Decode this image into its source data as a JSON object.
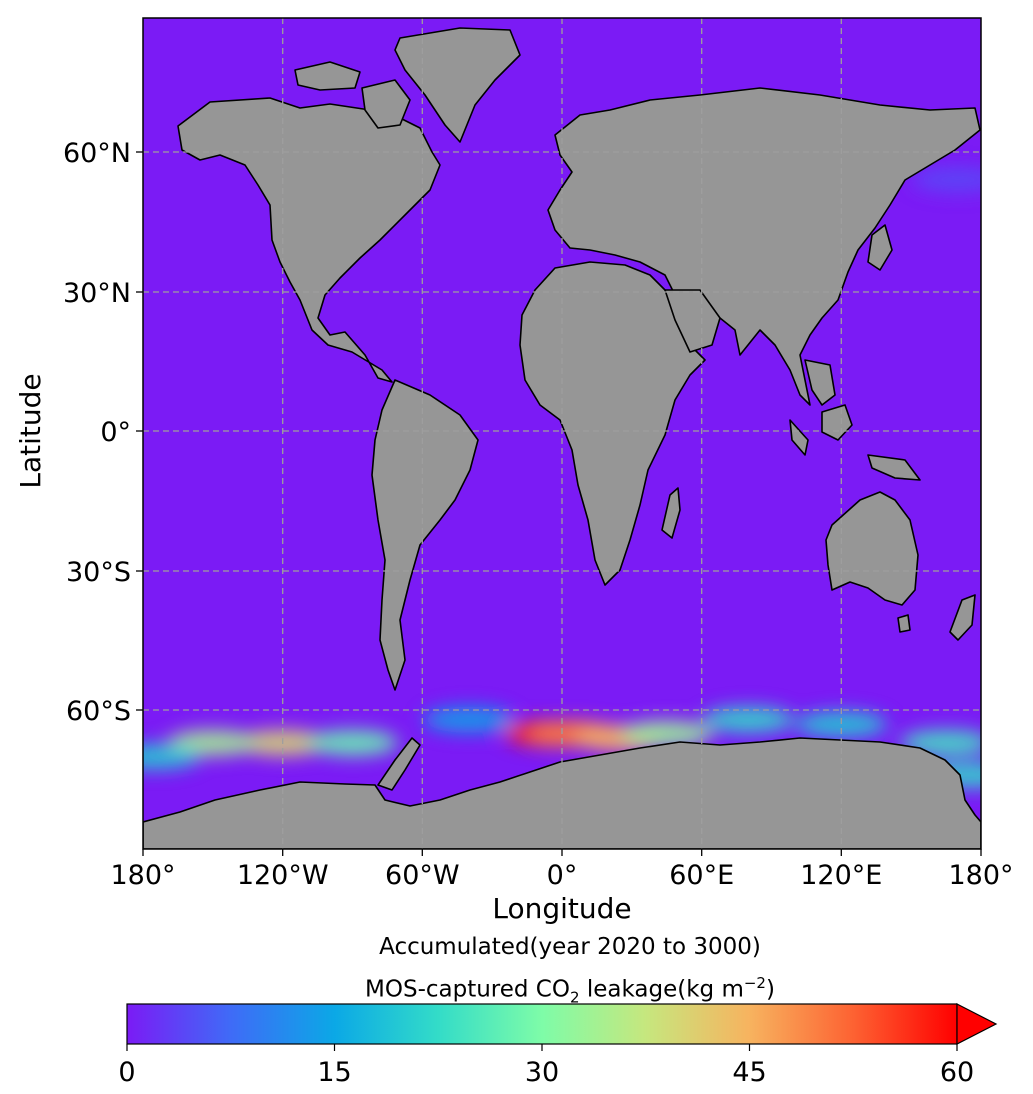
{
  "map": {
    "projection": "PlateCarree",
    "extent": {
      "lon": [
        -180,
        180
      ],
      "lat": [
        -90,
        90
      ]
    },
    "ocean_color": "#7B1BF5",
    "land_color": "#969696",
    "coast_color": "#000000",
    "x_ticks": [
      "180°",
      "120°W",
      "60°W",
      "0°",
      "60°E",
      "120°E",
      "180°"
    ],
    "x_tick_values": [
      -180,
      -120,
      -60,
      0,
      60,
      120,
      180
    ],
    "y_ticks": [
      "60°N",
      "30°N",
      "0°",
      "30°S",
      "60°S"
    ],
    "y_tick_values": [
      60,
      30,
      0,
      -30,
      -60
    ],
    "xlabel": "Longitude",
    "ylabel": "Latitude",
    "grid": true
  },
  "colorbar": {
    "title_line1": "Accumulated(year 2020 to 3000)",
    "title_line2_prefix": "MOS-captured CO",
    "title_line2_sub": "2",
    "title_line2_mid": " leakage(kg m",
    "title_line2_sup": "−2",
    "title_line2_suffix": ")",
    "ticks": [
      "0",
      "15",
      "30",
      "45",
      "60"
    ],
    "tick_values": [
      0,
      15,
      30,
      45,
      60
    ],
    "range": [
      0,
      60
    ],
    "extend": "max",
    "colormap": "rainbow",
    "stops": [
      "#7B1BF5",
      "#3F6BF7",
      "#0BA8E6",
      "#33DCC8",
      "#7EFCA8",
      "#C6E77E",
      "#F7B35F",
      "#FD6232",
      "#FF0000"
    ]
  },
  "chart_data": {
    "type": "heatmap",
    "variable": "Accumulated(year 2020 to 3000) MOS-captured CO2 leakage",
    "units": "kg m^-2",
    "color_range": [
      0,
      60
    ],
    "background_value": 0,
    "hotspots": [
      {
        "lon": -5,
        "lat": -65,
        "value": 58
      },
      {
        "lon": 5,
        "lat": -65,
        "value": 50
      },
      {
        "lon": 25,
        "lat": -66,
        "value": 45
      },
      {
        "lon": -120,
        "lat": -67,
        "value": 40
      },
      {
        "lon": -150,
        "lat": -67,
        "value": 34
      },
      {
        "lon": -90,
        "lat": -67,
        "value": 28
      },
      {
        "lon": 45,
        "lat": -65,
        "value": 33
      },
      {
        "lon": 80,
        "lat": -62,
        "value": 22
      },
      {
        "lon": 120,
        "lat": -63,
        "value": 20
      },
      {
        "lon": 165,
        "lat": -67,
        "value": 24
      },
      {
        "lon": 175,
        "lat": -74,
        "value": 22
      },
      {
        "lon": -175,
        "lat": -70,
        "value": 20
      },
      {
        "lon": -40,
        "lat": -62,
        "value": 14
      },
      {
        "lon": 170,
        "lat": 55,
        "value": 4
      }
    ]
  }
}
